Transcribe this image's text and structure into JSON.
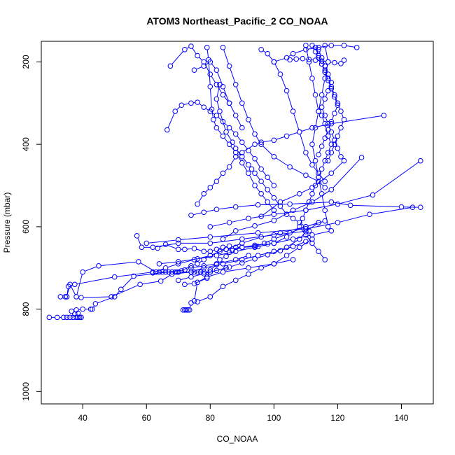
{
  "chart_data": {
    "type": "line",
    "title": "ATOM3 Northeast_Pacific_2 CO_NOAA",
    "xlabel": "CO_NOAA",
    "ylabel": "Pressure (mbar)",
    "xlim": [
      27,
      150
    ],
    "ylim": [
      1030,
      150
    ],
    "y_reversed": true,
    "x_ticks": [
      40,
      60,
      80,
      100,
      120,
      140
    ],
    "y_ticks": [
      200,
      400,
      600,
      800,
      1000
    ],
    "grid": false,
    "colors": {
      "series": "#0000ff"
    },
    "marker": "open-circle",
    "series": [
      {
        "x": [
          29.5,
          32,
          34,
          35,
          36,
          37,
          38,
          38.5,
          39,
          39.5
        ],
        "y": [
          820,
          820,
          820,
          820,
          820,
          820,
          820,
          820,
          820,
          820
        ]
      },
      {
        "x": [
          39.5,
          38.5,
          37.5,
          36.5,
          38,
          40,
          42.5,
          43,
          44,
          50,
          52,
          56,
          72,
          74,
          78,
          82,
          88,
          92
        ],
        "y": [
          820,
          810,
          812,
          805,
          802,
          800,
          800,
          800,
          787,
          770,
          752,
          720,
          705,
          700,
          695,
          690,
          680,
          670
        ]
      },
      {
        "x": [
          71.5,
          72,
          72.5,
          73,
          73.5,
          74,
          75,
          76,
          79,
          84,
          92,
          100,
          106
        ],
        "y": [
          802,
          802,
          802,
          802,
          802,
          785,
          780,
          735,
          722,
          710,
          700,
          690,
          680
        ]
      },
      {
        "x": [
          33,
          34.5,
          35,
          36,
          38,
          40,
          45,
          57.5,
          63,
          66,
          68,
          69.5,
          70,
          74,
          76,
          80,
          85
        ],
        "y": [
          770,
          770,
          770,
          740,
          770,
          710,
          695,
          685,
          710,
          710,
          710,
          710,
          710,
          710,
          710,
          710,
          700
        ]
      },
      {
        "x": [
          35,
          35.5,
          37.5,
          50,
          62,
          63,
          64,
          65,
          67,
          69,
          70,
          75,
          77,
          78,
          80
        ],
        "y": [
          770,
          745,
          740,
          722,
          710,
          710,
          710,
          710,
          710,
          710,
          710,
          710,
          710,
          710,
          710
        ]
      },
      {
        "x": [
          39.5,
          49,
          58,
          64.5,
          68,
          74,
          78,
          84,
          90,
          95,
          100,
          104,
          108,
          110,
          114
        ],
        "y": [
          772,
          770,
          740,
          732,
          715,
          710,
          700,
          690,
          680,
          670,
          660,
          650,
          630,
          612,
          590
        ]
      },
      {
        "x": [
          57,
          58.5,
          62,
          70,
          80,
          90,
          100,
          111
        ],
        "y": [
          622,
          650,
          650,
          640,
          640,
          630,
          620,
          610
        ]
      },
      {
        "x": [
          63.5,
          66,
          70,
          72,
          75,
          78,
          80,
          82,
          84,
          86,
          88,
          90,
          95
        ],
        "y": [
          652,
          643,
          655,
          655,
          653,
          660,
          660,
          655,
          650,
          647,
          650,
          650,
          648
        ]
      },
      {
        "x": [
          71,
          74,
          76,
          78,
          80,
          83,
          85,
          90,
          94,
          98,
          100,
          104
        ],
        "y": [
          707,
          695,
          690,
          680,
          670,
          660,
          655,
          650,
          645,
          642,
          640,
          625
        ]
      },
      {
        "x": [
          72,
          75,
          79,
          80,
          82,
          83,
          85,
          86,
          87,
          90,
          94,
          97,
          100,
          105,
          110,
          114
        ],
        "y": [
          740,
          738,
          725,
          705,
          692,
          680,
          672,
          662,
          658,
          650,
          648,
          640,
          630,
          615,
          600,
          590
        ]
      },
      {
        "x": [
          76,
          80,
          84,
          88,
          92,
          96,
          100,
          104,
          108,
          112
        ],
        "y": [
          782,
          770,
          745,
          730,
          715,
          700,
          690,
          670,
          650,
          630
        ]
      },
      {
        "x": [
          62,
          66,
          70,
          75,
          80,
          85,
          90,
          96,
          102,
          110,
          116
        ],
        "y": [
          712,
          700,
          690,
          680,
          670,
          655,
          640,
          625,
          615,
          600,
          586
        ]
      },
      {
        "x": [
          60,
          70,
          80,
          95,
          110,
          120,
          130,
          143.5
        ],
        "y": [
          640,
          632,
          625,
          615,
          605,
          590,
          570,
          553
        ]
      },
      {
        "x": [
          74,
          78,
          82,
          88,
          95,
          105,
          118,
          124,
          140,
          146
        ],
        "y": [
          572,
          565,
          558,
          552,
          547,
          545,
          540,
          548,
          552,
          553
        ]
      },
      {
        "x": [
          80,
          86,
          92,
          100,
          110,
          120,
          131,
          146
        ],
        "y": [
          600,
          590,
          580,
          570,
          560,
          545,
          523,
          440
        ]
      },
      {
        "x": [
          84,
          88,
          94,
          100,
          106,
          112,
          118,
          127.5
        ],
        "y": [
          630,
          610,
          598,
          585,
          560,
          540,
          510,
          432
        ]
      },
      {
        "x": [
          96,
          102,
          108,
          112,
          118,
          122
        ],
        "y": [
          575,
          540,
          520,
          505,
          470,
          440
        ]
      },
      {
        "x": [
          76,
          78,
          80,
          82,
          84,
          86,
          88,
          90,
          94,
          96,
          100,
          104,
          108,
          112,
          118,
          134.5
        ],
        "y": [
          545,
          520,
          505,
          490,
          470,
          455,
          430,
          420,
          400,
          395,
          390,
          380,
          370,
          360,
          350,
          330
        ]
      },
      {
        "x": [
          66.5,
          69,
          71,
          74,
          76,
          78,
          80,
          82,
          84,
          86,
          88,
          90,
          92,
          94,
          96,
          98,
          100
        ],
        "y": [
          365,
          320,
          305,
          300,
          298,
          310,
          320,
          330,
          345,
          360,
          375,
          395,
          415,
          435,
          460,
          480,
          500
        ]
      },
      {
        "x": [
          67.5,
          72,
          74,
          76,
          78,
          80,
          82,
          84,
          86
        ],
        "y": [
          210,
          170,
          162,
          185,
          200,
          230,
          255,
          280,
          300
        ]
      },
      {
        "x": [
          79,
          79.5,
          80,
          80.5,
          81,
          82,
          84,
          86,
          88,
          90,
          92,
          94,
          96,
          98,
          100
        ],
        "y": [
          165,
          195,
          260,
          315,
          340,
          360,
          380,
          400,
          420,
          445,
          470,
          500,
          520,
          540,
          560
        ]
      },
      {
        "x": [
          75,
          78,
          80,
          82,
          84,
          86,
          88,
          90
        ],
        "y": [
          220,
          210,
          200,
          220,
          260,
          300,
          330,
          360
        ]
      },
      {
        "x": [
          83,
          82,
          83,
          85,
          87,
          88,
          90,
          92,
          93,
          94,
          96,
          98,
          100,
          102,
          104,
          106,
          108,
          110
        ],
        "y": [
          255,
          290,
          320,
          370,
          395,
          410,
          430,
          450,
          460,
          470,
          490,
          510,
          530,
          550,
          570,
          580,
          590,
          600
        ]
      },
      {
        "x": [
          84,
          86,
          88,
          90,
          92,
          94,
          96,
          100,
          105,
          110,
          114,
          116
        ],
        "y": [
          165,
          210,
          255,
          300,
          340,
          375,
          400,
          430,
          455,
          475,
          490,
          505
        ]
      },
      {
        "x": [
          96,
          98,
          100,
          102,
          104,
          106,
          108,
          110,
          112,
          114,
          116
        ],
        "y": [
          170,
          180,
          200,
          230,
          270,
          320,
          370,
          420,
          450,
          470,
          490
        ]
      },
      {
        "x": [
          100,
          104,
          106,
          110,
          114,
          118,
          122,
          126
        ],
        "y": [
          200,
          190,
          180,
          170,
          165,
          160,
          160,
          165
        ]
      },
      {
        "x": [
          110,
          111,
          112,
          113,
          114,
          115,
          116,
          117,
          118,
          117,
          116,
          115,
          114,
          113,
          112,
          111,
          110,
          109,
          108,
          110,
          112,
          114,
          116
        ],
        "y": [
          160,
          200,
          240,
          280,
          320,
          330,
          350,
          380,
          400,
          420,
          440,
          460,
          480,
          500,
          520,
          540,
          560,
          580,
          600,
          620,
          640,
          660,
          680
        ]
      },
      {
        "x": [
          112,
          113,
          114,
          115,
          116,
          117,
          118,
          119,
          120,
          121,
          122,
          121,
          120,
          119,
          118,
          117
        ],
        "y": [
          160,
          175,
          190,
          205,
          220,
          240,
          260,
          280,
          300,
          320,
          340,
          360,
          380,
          400,
          420,
          440
        ]
      },
      {
        "x": [
          113,
          114,
          115,
          116,
          117,
          118,
          119,
          120,
          119,
          118,
          117,
          116,
          115,
          114
        ],
        "y": [
          165,
          185,
          205,
          225,
          245,
          265,
          285,
          305,
          325,
          345,
          365,
          385,
          405,
          425
        ]
      },
      {
        "x": [
          114,
          115,
          116,
          117,
          118,
          117,
          116,
          115,
          116,
          117,
          118,
          119,
          120,
          121
        ],
        "y": [
          170,
          190,
          210,
          230,
          250,
          270,
          290,
          310,
          330,
          350,
          370,
          390,
          410,
          430
        ]
      },
      {
        "x": [
          116,
          117,
          116,
          115,
          114,
          113,
          112,
          113,
          114,
          115,
          116,
          117
        ],
        "y": [
          160,
          200,
          240,
          280,
          320,
          360,
          400,
          440,
          480,
          520,
          560,
          600
        ]
      },
      {
        "x": [
          105,
          107,
          109,
          111,
          113,
          115,
          117,
          119,
          121,
          122
        ],
        "y": [
          195,
          193,
          192,
          194,
          196,
          198,
          200,
          202,
          204,
          196
        ]
      },
      {
        "x": [
          64,
          70,
          76,
          82,
          88,
          94,
          100,
          106,
          112,
          118
        ],
        "y": [
          690,
          685,
          678,
          670,
          660,
          650,
          640,
          630,
          620,
          610
        ]
      },
      {
        "x": [
          70,
          74,
          78,
          82,
          86,
          90,
          94,
          98,
          102,
          106,
          110
        ],
        "y": [
          730,
          722,
          714,
          706,
          698,
          688,
          678,
          668,
          658,
          648,
          636
        ]
      }
    ]
  }
}
